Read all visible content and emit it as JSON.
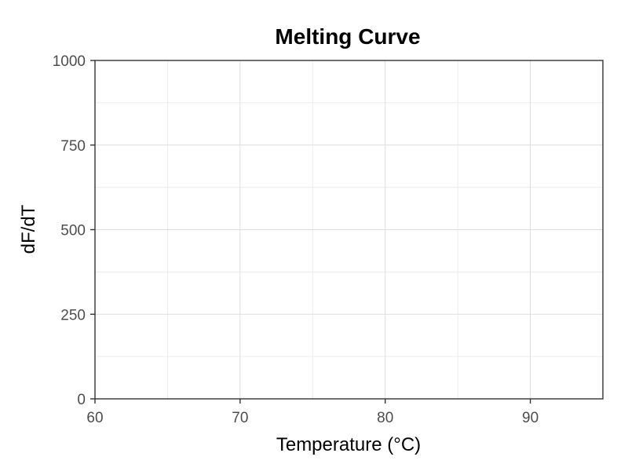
{
  "chart_data": {
    "type": "line",
    "title": "Melting Curve",
    "xlabel": "Temperature (°C)",
    "ylabel": "dF/dT",
    "xlim": [
      60,
      95
    ],
    "ylim": [
      0,
      1000
    ],
    "x_ticks": [
      60,
      70,
      80,
      90
    ],
    "y_ticks": [
      0,
      250,
      500,
      750,
      1000
    ],
    "x_minor_ticks": [
      65,
      75,
      85
    ],
    "y_minor_ticks": [
      125,
      375,
      625,
      875
    ],
    "grid": true,
    "legend": "none",
    "series": []
  },
  "colors": {
    "background": "#ffffff",
    "panel_border": "#333333",
    "grid_major": "#dedede",
    "grid_minor": "#ececec",
    "tick_text": "#4d4d4d",
    "title_text": "#000000"
  }
}
